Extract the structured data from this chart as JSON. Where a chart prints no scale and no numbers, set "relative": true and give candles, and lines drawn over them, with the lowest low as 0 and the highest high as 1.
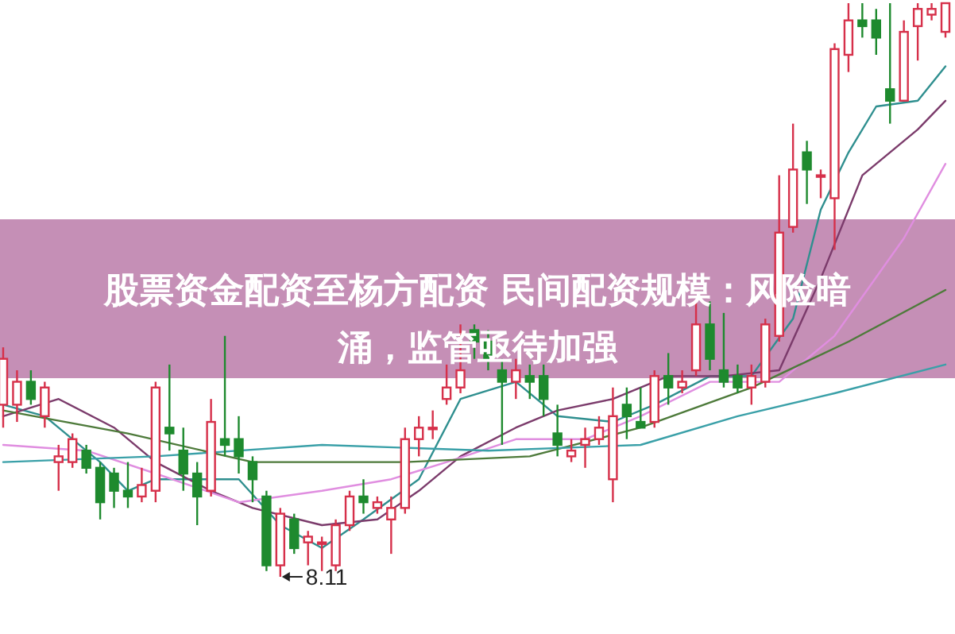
{
  "chart_data": {
    "type": "candlestick",
    "relative": true,
    "title": "股票资金配资至杨方配资 民间配资规模：风险暗涌，监管亟待加强",
    "annotations": [
      {
        "text": "8.11",
        "y": 0
      }
    ],
    "categories": [
      null,
      null,
      null,
      null,
      null,
      null,
      null,
      null,
      null,
      null,
      null,
      null,
      null,
      null,
      null,
      null,
      null,
      null,
      null,
      null,
      null,
      null,
      null,
      null,
      null,
      null,
      null,
      null,
      null,
      null,
      null,
      null,
      null,
      null,
      null,
      null,
      null,
      null,
      null,
      null,
      null,
      null,
      null,
      null,
      null,
      null,
      null,
      null,
      null,
      null,
      null,
      null,
      null,
      null,
      null,
      null,
      null,
      null,
      null,
      null,
      null,
      null,
      null,
      null,
      null,
      null,
      null,
      null,
      null
    ],
    "ohlc": [
      [
        0.3,
        0.4,
        0.26,
        0.38
      ],
      [
        0.3,
        0.36,
        0.27,
        0.34
      ],
      [
        0.34,
        0.36,
        0.3,
        0.31
      ],
      [
        0.28,
        0.34,
        0.26,
        0.33
      ],
      [
        0.2,
        0.23,
        0.15,
        0.21
      ],
      [
        0.2,
        0.25,
        0.19,
        0.24
      ],
      [
        0.22,
        0.23,
        0.18,
        0.19
      ],
      [
        0.19,
        0.2,
        0.1,
        0.13
      ],
      [
        0.18,
        0.19,
        0.12,
        0.15
      ],
      [
        0.15,
        0.2,
        0.12,
        0.14
      ],
      [
        0.14,
        0.19,
        0.13,
        0.16
      ],
      [
        0.15,
        0.34,
        0.13,
        0.33
      ],
      [
        0.26,
        0.37,
        0.22,
        0.25
      ],
      [
        0.22,
        0.26,
        0.15,
        0.18
      ],
      [
        0.18,
        0.2,
        0.09,
        0.14
      ],
      [
        0.15,
        0.31,
        0.14,
        0.27
      ],
      [
        0.24,
        0.42,
        0.21,
        0.23
      ],
      [
        0.24,
        0.28,
        0.18,
        0.21
      ],
      [
        0.2,
        0.21,
        0.13,
        0.17
      ],
      [
        0.14,
        0.15,
        0.01,
        0.02
      ],
      [
        0.02,
        0.12,
        0,
        0.11
      ],
      [
        0.1,
        0.11,
        0.04,
        0.05
      ],
      [
        0.06,
        0.08,
        0.02,
        0.07
      ],
      [
        0.06,
        0.07,
        0.01,
        0.06
      ],
      [
        0.02,
        0.1,
        0.01,
        0.09
      ],
      [
        0.09,
        0.15,
        0.08,
        0.14
      ],
      [
        0.14,
        0.17,
        0.11,
        0.13
      ],
      [
        0.12,
        0.14,
        0.11,
        0.13
      ],
      [
        0.1,
        0.14,
        0.04,
        0.12
      ],
      [
        0.12,
        0.26,
        0.11,
        0.24
      ],
      [
        0.24,
        0.28,
        0.21,
        0.26
      ],
      [
        0.26,
        0.29,
        0.24,
        0.26
      ],
      [
        0.31,
        0.37,
        0.3,
        0.33
      ],
      [
        0.33,
        0.44,
        0.32,
        0.36
      ],
      [
        0.43,
        0.44,
        0.38,
        0.41
      ],
      [
        0.41,
        0.43,
        0.36,
        0.38
      ],
      [
        0.36,
        0.38,
        0.23,
        0.34
      ],
      [
        0.34,
        0.38,
        0.31,
        0.36
      ],
      [
        0.35,
        0.37,
        0.31,
        0.34
      ],
      [
        0.35,
        0.37,
        0.28,
        0.31
      ],
      [
        0.25,
        0.3,
        0.21,
        0.23
      ],
      [
        0.21,
        0.24,
        0.2,
        0.22
      ],
      [
        0.23,
        0.26,
        0.19,
        0.24
      ],
      [
        0.24,
        0.28,
        0.23,
        0.26
      ],
      [
        0.17,
        0.33,
        0.13,
        0.28
      ],
      [
        0.3,
        0.33,
        0.24,
        0.28
      ],
      [
        0.27,
        0.33,
        0.26,
        0.26
      ],
      [
        0.27,
        0.36,
        0.26,
        0.35
      ],
      [
        0.35,
        0.39,
        0.3,
        0.33
      ],
      [
        0.33,
        0.36,
        0.32,
        0.34
      ],
      [
        0.36,
        0.48,
        0.35,
        0.44
      ],
      [
        0.44,
        0.48,
        0.36,
        0.38
      ],
      [
        0.36,
        0.46,
        0.33,
        0.34
      ],
      [
        0.35,
        0.37,
        0.32,
        0.33
      ],
      [
        0.33,
        0.37,
        0.3,
        0.35
      ],
      [
        0.34,
        0.45,
        0.33,
        0.44
      ],
      [
        0.42,
        0.7,
        0.41,
        0.6
      ],
      [
        0.61,
        0.79,
        0.6,
        0.71
      ],
      [
        0.74,
        0.76,
        0.65,
        0.71
      ],
      [
        0.7,
        0.71,
        0.66,
        0.7
      ],
      [
        0.66,
        0.93,
        0.57,
        0.92
      ],
      [
        0.91,
        1,
        0.88,
        0.97
      ],
      [
        0.97,
        1,
        0.94,
        0.96
      ],
      [
        0.97,
        0.99,
        0.91,
        0.94
      ],
      [
        0.85,
        1,
        0.79,
        0.83
      ],
      [
        0.83,
        0.97,
        0.83,
        0.95
      ],
      [
        0.96,
        1,
        0.9,
        0.99
      ],
      [
        0.98,
        1,
        0.97,
        0.99
      ],
      [
        0.95,
        1,
        0.94,
        1
      ]
    ],
    "series": [
      {
        "type": "line",
        "color": "#2f8f8f",
        "values": [
          0.3,
          null,
          null,
          0.28,
          null,
          null,
          null,
          0.2,
          null,
          0.15,
          null,
          0.17,
          null,
          null,
          0.17,
          null,
          null,
          0.17,
          null,
          null,
          0.09,
          null,
          null,
          0.05,
          null,
          null,
          0.1,
          null,
          null,
          null,
          0.17,
          null,
          null,
          0.31,
          null,
          null,
          null,
          0.34,
          null,
          null,
          0.28,
          null,
          null,
          null,
          0.27,
          null,
          null,
          0.3,
          null,
          null,
          null,
          0.35,
          null,
          null,
          0.35,
          null,
          null,
          0.45,
          null,
          0.64,
          null,
          0.74,
          null,
          0.82,
          null,
          null,
          0.83,
          null,
          0.89
        ]
      },
      {
        "type": "line",
        "color": "#7b3b6b",
        "values": [
          0.28,
          null,
          null,
          null,
          0.31,
          null,
          null,
          null,
          0.26,
          null,
          null,
          0.2,
          null,
          null,
          null,
          0.15,
          null,
          null,
          0.12,
          null,
          null,
          null,
          null,
          0.09,
          null,
          null,
          null,
          0.1,
          null,
          null,
          0.15,
          null,
          null,
          0.21,
          null,
          null,
          null,
          0.26,
          null,
          null,
          0.29,
          null,
          null,
          null,
          0.31,
          null,
          null,
          null,
          0.35,
          null,
          null,
          null,
          0.35,
          null,
          null,
          null,
          0.36,
          null,
          null,
          0.52,
          null,
          null,
          0.7,
          null,
          null,
          null,
          0.78,
          null,
          0.83
        ]
      },
      {
        "type": "line",
        "color": "#e08ee0",
        "values": [
          0.23,
          null,
          null,
          null,
          null,
          null,
          0.22,
          null,
          null,
          null,
          null,
          0.18,
          null,
          null,
          null,
          null,
          null,
          0.13,
          null,
          null,
          null,
          null,
          null,
          0.15,
          null,
          null,
          null,
          null,
          0.17,
          null,
          null,
          null,
          0.2,
          null,
          null,
          null,
          null,
          0.24,
          null,
          null,
          null,
          null,
          0.24,
          null,
          null,
          null,
          0.28,
          null,
          null,
          null,
          null,
          0.34,
          null,
          null,
          null,
          null,
          0.34,
          null,
          null,
          null,
          0.42,
          null,
          null,
          null,
          null,
          0.59,
          null,
          null,
          0.72
        ]
      },
      {
        "type": "line",
        "color": "#4d7a3a",
        "values": [
          0.29,
          null,
          null,
          null,
          null,
          null,
          null,
          null,
          null,
          0.25,
          null,
          null,
          null,
          null,
          null,
          null,
          null,
          null,
          0.2,
          null,
          null,
          null,
          null,
          null,
          null,
          null,
          null,
          null,
          null,
          0.2,
          null,
          null,
          null,
          null,
          null,
          null,
          null,
          null,
          0.21,
          null,
          null,
          null,
          null,
          null,
          null,
          null,
          0.26,
          null,
          null,
          null,
          null,
          null,
          null,
          null,
          0.33,
          null,
          null,
          null,
          null,
          null,
          null,
          0.41,
          null,
          null,
          null,
          null,
          null,
          null,
          0.5
        ]
      },
      {
        "type": "line",
        "color": "#3aa0a8",
        "values": [
          0.2,
          null,
          null,
          null,
          null,
          null,
          null,
          null,
          null,
          null,
          null,
          0.21,
          null,
          null,
          null,
          null,
          null,
          null,
          null,
          null,
          null,
          null,
          null,
          0.23,
          null,
          null,
          null,
          null,
          null,
          null,
          null,
          null,
          null,
          null,
          null,
          0.22,
          null,
          null,
          null,
          null,
          null,
          null,
          null,
          null,
          null,
          null,
          0.23,
          null,
          null,
          null,
          null,
          null,
          null,
          0.28,
          null,
          null,
          null,
          null,
          null,
          null,
          0.32,
          null,
          null,
          null,
          null,
          null,
          null,
          null,
          0.37
        ]
      }
    ]
  }
}
